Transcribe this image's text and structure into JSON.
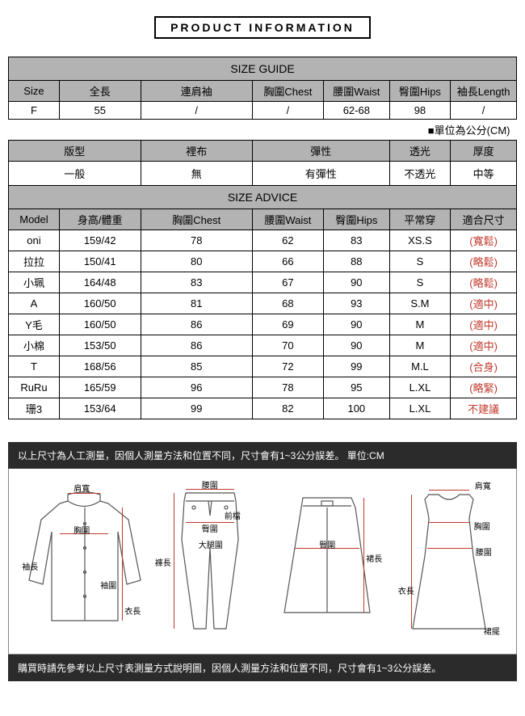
{
  "title": "PRODUCT INFORMATION",
  "sizeGuide": {
    "header": "SIZE GUIDE",
    "cols": [
      "Size",
      "全長",
      "連肩袖",
      "胸圍Chest",
      "腰圍Waist",
      "臀圍Hips",
      "袖長Length"
    ],
    "row": [
      "F",
      "55",
      "/",
      "/",
      "62-68",
      "98",
      "/"
    ],
    "unitNote": "■單位為公分(CM)"
  },
  "fabric": {
    "cols": [
      "版型",
      "裡布",
      "彈性",
      "透光",
      "厚度"
    ],
    "row": [
      "一般",
      "無",
      "有彈性",
      "不透光",
      "中等"
    ]
  },
  "advice": {
    "header": "SIZE ADVICE",
    "cols": [
      "Model",
      "身高/體重",
      "胸圍Chest",
      "腰圍Waist",
      "臀圍Hips",
      "平常穿",
      "適合尺寸"
    ],
    "rows": [
      {
        "c": [
          "oni",
          "159/42",
          "78",
          "62",
          "83",
          "XS.S"
        ],
        "fit": "(寬鬆)"
      },
      {
        "c": [
          "拉拉",
          "150/41",
          "80",
          "66",
          "88",
          "S"
        ],
        "fit": "(略鬆)"
      },
      {
        "c": [
          "小珮",
          "164/48",
          "83",
          "67",
          "90",
          "S"
        ],
        "fit": "(略鬆)"
      },
      {
        "c": [
          "A",
          "160/50",
          "81",
          "68",
          "93",
          "S.M"
        ],
        "fit": "(適中)"
      },
      {
        "c": [
          "Y毛",
          "160/50",
          "86",
          "69",
          "90",
          "M"
        ],
        "fit": "(適中)"
      },
      {
        "c": [
          "小棉",
          "153/50",
          "86",
          "70",
          "90",
          "M"
        ],
        "fit": "(適中)"
      },
      {
        "c": [
          "T",
          "168/56",
          "85",
          "72",
          "99",
          "M.L"
        ],
        "fit": "(合身)"
      },
      {
        "c": [
          "RuRu",
          "165/59",
          "96",
          "78",
          "95",
          "L.XL"
        ],
        "fit": "(略緊)"
      },
      {
        "c": [
          "珊3",
          "153/64",
          "99",
          "82",
          "100",
          "L.XL"
        ],
        "fit": "不建議"
      }
    ]
  },
  "banners": {
    "top": "以上尺寸為人工測量，因個人測量方法和位置不同，尺寸會有1~3公分誤差。 單位:CM",
    "bottom": "購買時請先參考以上尺寸表測量方式說明圖，因個人測量方法和位置不同，尺寸會有1~3公分誤差。"
  },
  "diagramLabels": {
    "shoulder": "肩寬",
    "chest": "胸圍",
    "sleeve": "袖長",
    "cuff": "袖圍",
    "length": "衣長",
    "waist": "腰圍",
    "hip": "臀圍",
    "thigh": "大腿圍",
    "rise": "前檔",
    "pantLen": "褲長",
    "skirtLen": "裙長",
    "hem": "裙擺"
  },
  "colors": {
    "headerBg": "#b3b3b3",
    "border": "#000000",
    "fitText": "#c0392b",
    "bannerBg": "#2b2b2b",
    "bannerText": "#ffffff",
    "diagramStroke": "#555555"
  }
}
